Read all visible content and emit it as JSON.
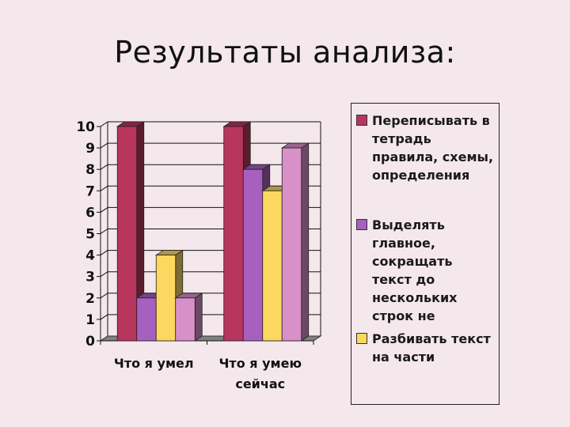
{
  "slide": {
    "title": "Результаты анализа:"
  },
  "chart_data": {
    "type": "bar",
    "style": "3d-clustered-column",
    "title": "",
    "xlabel": "",
    "ylabel": "",
    "ylim": [
      0,
      10
    ],
    "yticks": [
      "0",
      "1",
      "2",
      "3",
      "4",
      "5",
      "6",
      "7",
      "8",
      "9",
      "10"
    ],
    "grid": true,
    "legend_position": "right",
    "categories": [
      "Что я умел",
      "Что я умею сейчас"
    ],
    "series": [
      {
        "name": "Переписывать в тетрадь правила, схемы, определения",
        "color": "#b8365e",
        "values": [
          10,
          10
        ]
      },
      {
        "name": "Выделять главное, сокращать текст до нескольких строк не",
        "color": "#a860c0",
        "values": [
          2,
          8
        ]
      },
      {
        "name": "Разбивать текст на части",
        "color": "#fcd860",
        "values": [
          4,
          7
        ]
      },
      {
        "name": "",
        "color": "#d890c8",
        "values": [
          2,
          9
        ]
      }
    ]
  },
  "legend": {
    "items": [
      {
        "label": "Переписывать в тетрадь правила, схемы, определения",
        "color": "#b8365e"
      },
      {
        "label": "Выделять главное, сокращать текст до нескольких строк не",
        "color": "#a860c0"
      },
      {
        "label": "Разбивать текст на части",
        "color": "#fcd860"
      }
    ]
  }
}
